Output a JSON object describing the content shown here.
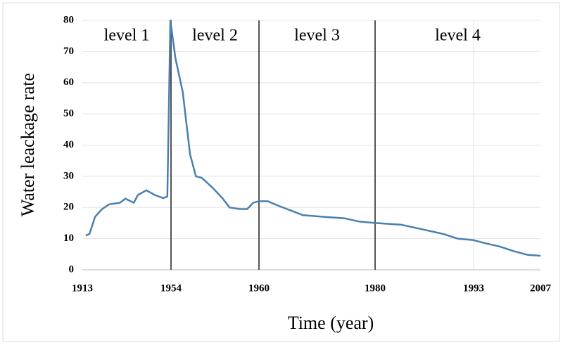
{
  "chart_data": {
    "type": "line",
    "x_label": "Time (year)",
    "y_label": "Water leackage rate",
    "x": [
      1914.6,
      1916.3,
      1918.9,
      1922.1,
      1925.4,
      1930.3,
      1932.9,
      1936.8,
      1938.7,
      1942.6,
      1946.5,
      1950.4,
      1952.3,
      1953.7,
      1954.3,
      1954.8,
      1955.1,
      1955.3,
      1955.7,
      1956.1,
      1956.8,
      1957.5,
      1958.0,
      1958.7,
      1959.2,
      1959.6,
      1960,
      1961.5,
      1963.4,
      1967.6,
      1971.2,
      1974.8,
      1977.2,
      1980,
      1983.4,
      1986.2,
      1989,
      1990.9,
      1993,
      1995.5,
      1998.4,
      2001.4,
      2004.3,
      2007
    ],
    "series": [
      {
        "color": "#4a7fb0",
        "values": [
          11,
          11.5,
          17,
          19.5,
          21,
          21.5,
          22.8,
          21.5,
          24,
          25.5,
          24,
          23,
          23.5,
          80,
          68,
          57,
          45,
          37,
          30,
          29.5,
          26.5,
          23,
          20,
          19.5,
          19.5,
          21.5,
          22,
          22,
          20.5,
          17.5,
          17,
          16.5,
          15.5,
          15,
          14.5,
          13,
          11.5,
          10,
          9.5,
          8.5,
          7.5,
          6,
          4.8,
          4.5
        ]
      }
    ],
    "xlim": [
      1913,
      2007
    ],
    "xticks": [
      1913,
      1954,
      1960,
      1980,
      1993,
      2007
    ],
    "ylim": [
      0,
      80
    ],
    "yticks": [
      0,
      10,
      20,
      30,
      40,
      50,
      60,
      70,
      80
    ],
    "grid": true,
    "dividers": [
      1954,
      1960,
      1980
    ],
    "annotations": [
      "level 1",
      "level 2",
      "level 3",
      "level 4"
    ]
  }
}
